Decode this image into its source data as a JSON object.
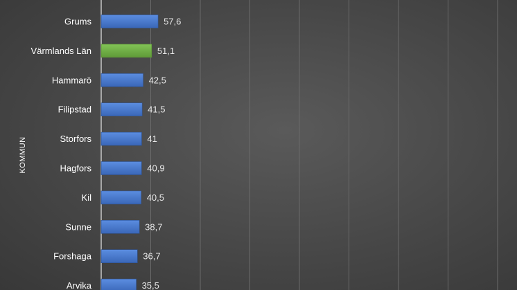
{
  "chart_data": {
    "type": "bar",
    "orientation": "horizontal",
    "ylabel": "KOMMUN",
    "categories": [
      "",
      "Grums",
      "Värmlands Län",
      "Hammarö",
      "Filipstad",
      "Storfors",
      "Hagfors",
      "Kil",
      "Sunne",
      "Forshaga",
      "Arvika"
    ],
    "values": [
      null,
      57.6,
      51.1,
      42.5,
      41.5,
      41,
      40.9,
      40.5,
      38.7,
      36.7,
      35.5
    ],
    "value_labels": [
      "",
      "57,6",
      "51,1",
      "42,5",
      "41,5",
      "41",
      "40,9",
      "40,5",
      "38,7",
      "36,7",
      "35,5"
    ],
    "highlight_category": "Värmlands Län",
    "grid": true,
    "legend": "none",
    "colors": {
      "bar": "#4472c4",
      "highlight": "#70ad47",
      "grid": "#6a6a6a",
      "text": "#ffffff"
    }
  }
}
